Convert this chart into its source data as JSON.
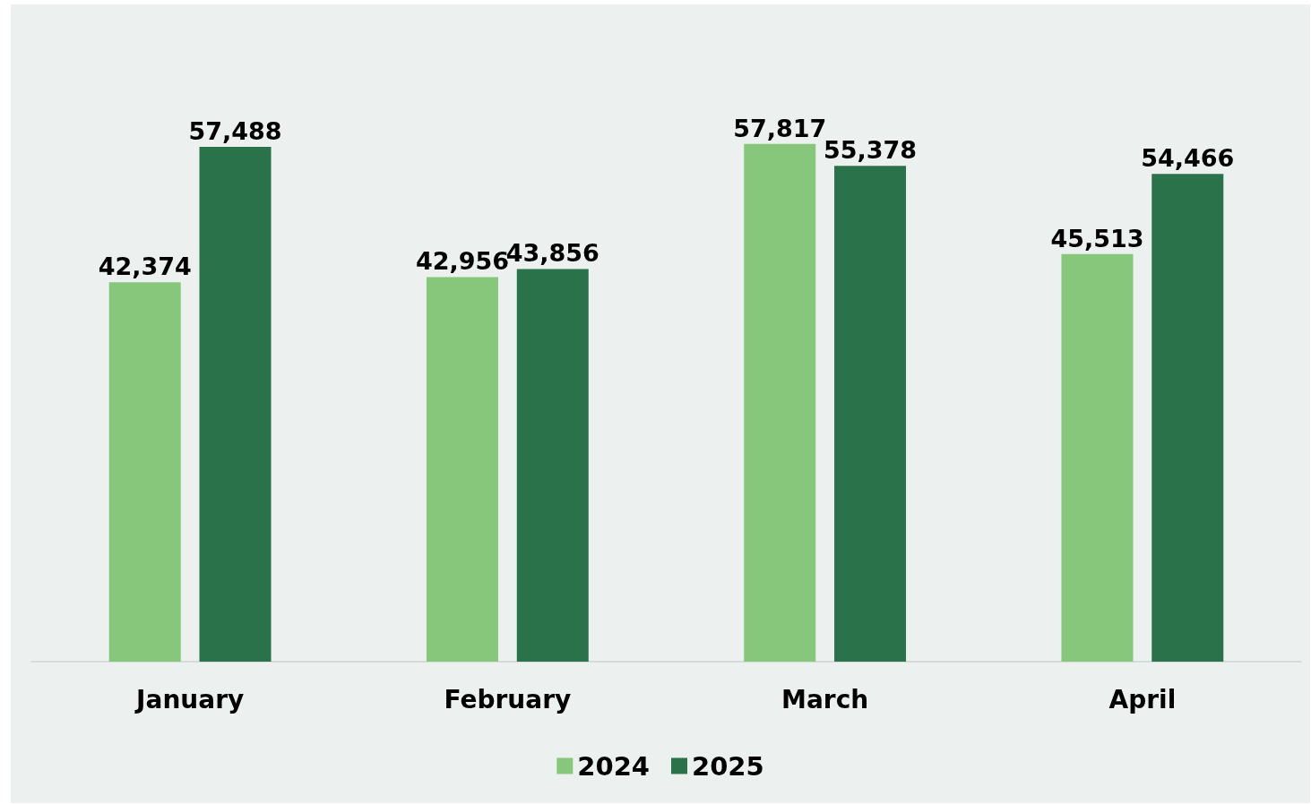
{
  "chart_data": {
    "type": "bar",
    "categories": [
      "January",
      "February",
      "March",
      "April"
    ],
    "series": [
      {
        "name": "2024",
        "color": "#86c77b",
        "values": [
          42374,
          42956,
          57817,
          45513
        ],
        "value_labels": [
          "42,374",
          "42,956",
          "57,817",
          "45,513"
        ]
      },
      {
        "name": "2025",
        "color": "#2a7249",
        "values": [
          57488,
          43856,
          55378,
          54466
        ],
        "value_labels": [
          "57,488",
          "43,856",
          "55,378",
          "54,466"
        ]
      }
    ],
    "legend": "bottom"
  }
}
